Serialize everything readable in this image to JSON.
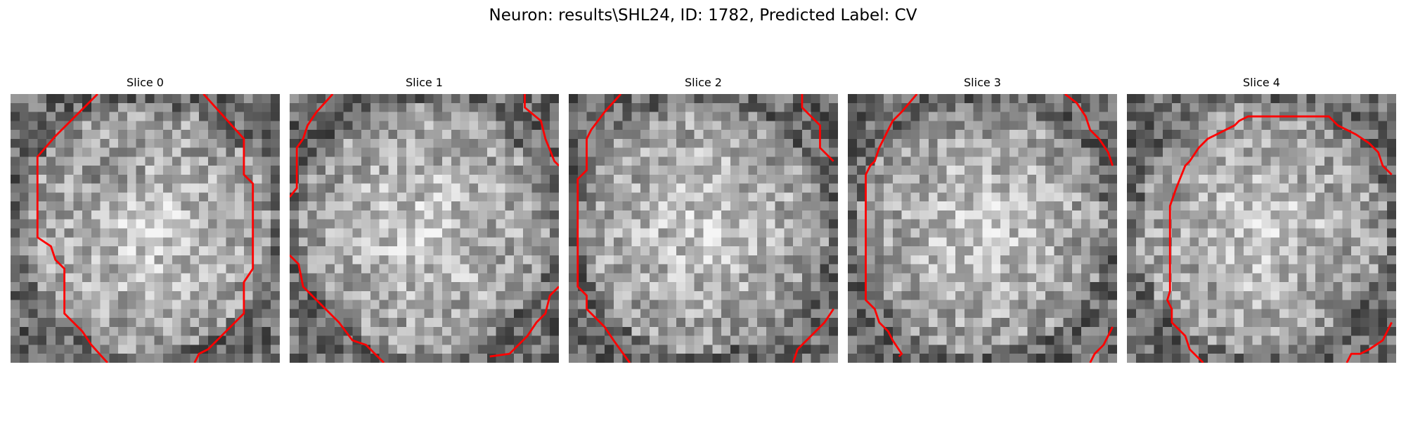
{
  "figure": {
    "title": "Neuron: results\\SHL24, ID: 1782, Predicted Label: CV"
  },
  "colors": {
    "contour": "#ff0000",
    "background": "#ffffff",
    "colormap": "gray"
  },
  "panels": [
    {
      "title": "Slice 0",
      "dark_center": true
    },
    {
      "title": "Slice 1",
      "dark_center": false
    },
    {
      "title": "Slice 2",
      "dark_center": false
    },
    {
      "title": "Slice 3",
      "dark_center": false
    },
    {
      "title": "Slice 4",
      "dark_center": false
    }
  ]
}
